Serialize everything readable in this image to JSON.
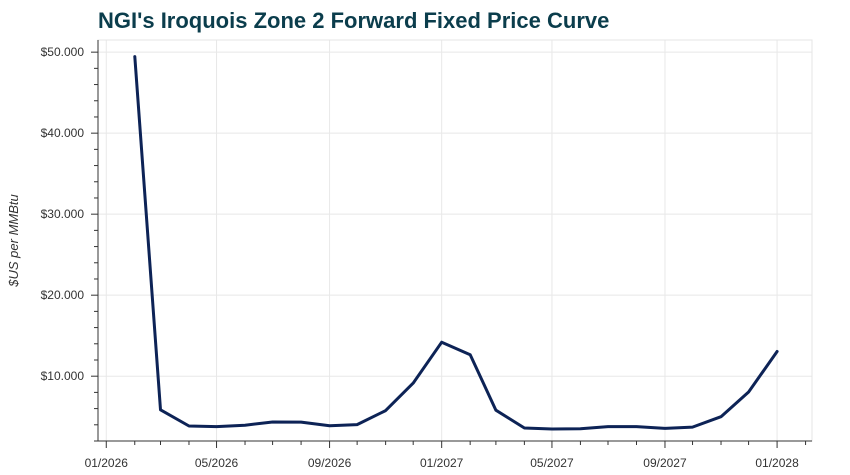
{
  "chart_data": {
    "type": "line",
    "title": "NGI's Iroquois Zone 2 Forward Fixed Price Curve",
    "ylabel": "$US per MMBtu",
    "xlabel": "",
    "grid": true,
    "legend": "none",
    "line_color": "#0d2356",
    "title_color": "#0b3d4c",
    "ylim": [
      2.0,
      51.5
    ],
    "xlim": [
      "2025-12-23",
      "2028-02-08"
    ],
    "x_ticks": [
      "2026-01-01",
      "2026-05-01",
      "2026-09-01",
      "2027-01-01",
      "2027-05-01",
      "2027-09-01",
      "2028-01-01"
    ],
    "x_tick_labels": [
      "01/2026",
      "05/2026",
      "09/2026",
      "01/2027",
      "05/2027",
      "09/2027",
      "01/2028"
    ],
    "y_ticks": [
      10,
      20,
      30,
      40,
      50
    ],
    "y_tick_labels": [
      "$10.000",
      "$20.000",
      "$30.000",
      "$40.000",
      "$50.000"
    ],
    "series": [
      {
        "x": [
          "2026-02-01",
          "2026-03-01",
          "2026-04-01",
          "2026-05-01",
          "2026-06-01",
          "2026-07-01",
          "2026-08-01",
          "2026-09-01",
          "2026-10-01",
          "2026-11-01",
          "2026-12-01",
          "2027-01-01",
          "2027-02-01",
          "2027-03-01",
          "2027-04-01",
          "2027-05-01",
          "2027-06-01",
          "2027-07-01",
          "2027-08-01",
          "2027-09-01",
          "2027-10-01",
          "2027-11-01",
          "2027-12-01",
          "2028-01-01"
        ],
        "values": [
          49.45,
          5.85,
          3.85,
          3.78,
          3.95,
          4.35,
          4.33,
          3.88,
          4.02,
          5.75,
          9.15,
          14.2,
          12.65,
          5.8,
          3.6,
          3.48,
          3.52,
          3.78,
          3.78,
          3.55,
          3.72,
          5.0,
          8.05,
          13.05
        ]
      }
    ]
  }
}
